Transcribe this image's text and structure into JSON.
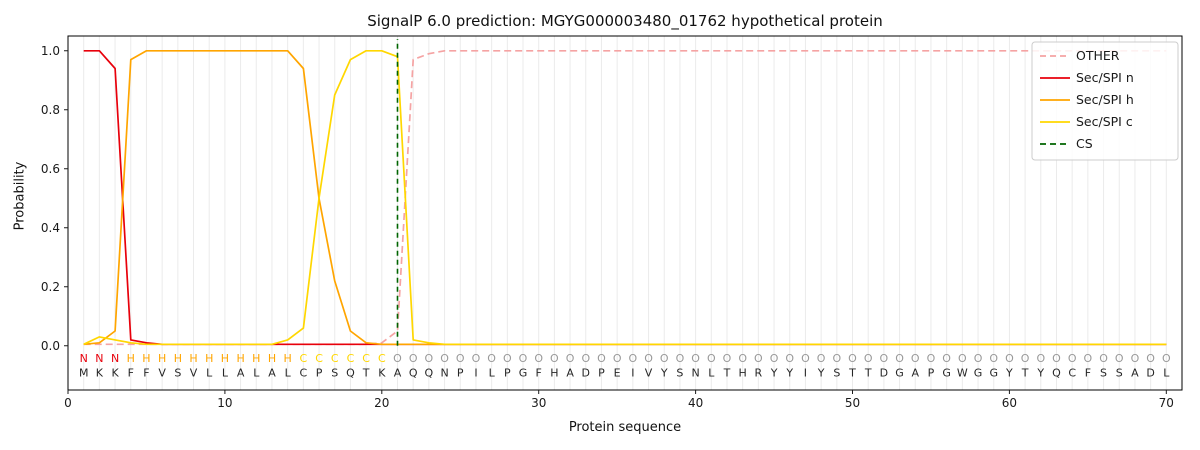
{
  "chart_data": {
    "type": "line",
    "title": "SignalP 6.0 prediction: MGYG000003480_01762 hypothetical protein",
    "xlabel": "Protein sequence",
    "ylabel": "Probability",
    "xlim": [
      0,
      71
    ],
    "ylim": [
      -0.15,
      1.05
    ],
    "xticks": [
      0,
      10,
      20,
      30,
      40,
      50,
      60,
      70
    ],
    "yticks": [
      "0.0",
      "0.2",
      "0.4",
      "0.6",
      "0.8",
      "1.0"
    ],
    "grid": "vertical-per-residue",
    "legend_position": "upper-right",
    "sequence": "MKKFFVSVLLALALCPSQTKAQQNPILPGFHADPEIVYSNLTHRYYIYSTTDGAPGWGGYTYQCFSSADL",
    "region_labels": "NNNHHHHHHHHHHHCCCCCCOOOOOOOOOOOOOOOOOOOOOOOOOOOOOOOOOOOOOOOOOOOOOOOOOO",
    "region_colors": {
      "N": "#e8000b",
      "H": "#ffa500",
      "C": "#ffd700",
      "O": "#999999"
    },
    "colors": {
      "grid": "#ebebeb",
      "axis": "#000000",
      "tick_text": "#1a1a1a",
      "aa_text": "#262626",
      "legend_border": "#cccccc",
      "legend_bg": "#ffffff"
    },
    "cs_position": 21,
    "series": [
      {
        "name": "OTHER",
        "color": "#f5a3a3",
        "dashed": true,
        "values": [
          0.005,
          0.005,
          0.005,
          0.005,
          0.005,
          0.005,
          0.005,
          0.005,
          0.005,
          0.005,
          0.005,
          0.005,
          0.005,
          0.005,
          0.005,
          0.005,
          0.005,
          0.005,
          0.005,
          0.01,
          0.05,
          0.97,
          0.99,
          1.0,
          1.0,
          1.0,
          1.0,
          1.0,
          1.0,
          1.0,
          1.0,
          1.0,
          1.0,
          1.0,
          1.0,
          1.0,
          1.0,
          1.0,
          1.0,
          1.0,
          1.0,
          1.0,
          1.0,
          1.0,
          1.0,
          1.0,
          1.0,
          1.0,
          1.0,
          1.0,
          1.0,
          1.0,
          1.0,
          1.0,
          1.0,
          1.0,
          1.0,
          1.0,
          1.0,
          1.0,
          1.0,
          1.0,
          1.0,
          1.0,
          1.0,
          1.0,
          1.0,
          1.0,
          1.0,
          1.0
        ]
      },
      {
        "name": "Sec/SPI n",
        "color": "#e8000b",
        "dashed": false,
        "values": [
          1.0,
          1.0,
          0.94,
          0.02,
          0.01,
          0.005,
          0.005,
          0.005,
          0.005,
          0.005,
          0.005,
          0.005,
          0.005,
          0.005,
          0.005,
          0.005,
          0.005,
          0.005,
          0.005,
          0.005,
          0.005,
          0.005,
          0.005,
          0.005,
          0.005,
          0.005,
          0.005,
          0.005,
          0.005,
          0.005,
          0.005,
          0.005,
          0.005,
          0.005,
          0.005,
          0.005,
          0.005,
          0.005,
          0.005,
          0.005,
          0.005,
          0.005,
          0.005,
          0.005,
          0.005,
          0.005,
          0.005,
          0.005,
          0.005,
          0.005,
          0.005,
          0.005,
          0.005,
          0.005,
          0.005,
          0.005,
          0.005,
          0.005,
          0.005,
          0.005,
          0.005,
          0.005,
          0.005,
          0.005,
          0.005,
          0.005,
          0.005,
          0.005,
          0.005,
          0.005
        ]
      },
      {
        "name": "Sec/SPI h",
        "color": "#ffa500",
        "dashed": false,
        "values": [
          0.005,
          0.01,
          0.05,
          0.97,
          1.0,
          1.0,
          1.0,
          1.0,
          1.0,
          1.0,
          1.0,
          1.0,
          1.0,
          1.0,
          0.94,
          0.5,
          0.22,
          0.05,
          0.01,
          0.005,
          0.005,
          0.005,
          0.005,
          0.005,
          0.005,
          0.005,
          0.005,
          0.005,
          0.005,
          0.005,
          0.005,
          0.005,
          0.005,
          0.005,
          0.005,
          0.005,
          0.005,
          0.005,
          0.005,
          0.005,
          0.005,
          0.005,
          0.005,
          0.005,
          0.005,
          0.005,
          0.005,
          0.005,
          0.005,
          0.005,
          0.005,
          0.005,
          0.005,
          0.005,
          0.005,
          0.005,
          0.005,
          0.005,
          0.005,
          0.005,
          0.005,
          0.005,
          0.005,
          0.005,
          0.005,
          0.005,
          0.005,
          0.005,
          0.005,
          0.005
        ]
      },
      {
        "name": "Sec/SPI c",
        "color": "#ffd700",
        "dashed": false,
        "values": [
          0.005,
          0.03,
          0.02,
          0.01,
          0.005,
          0.005,
          0.005,
          0.005,
          0.005,
          0.005,
          0.005,
          0.005,
          0.005,
          0.02,
          0.06,
          0.5,
          0.85,
          0.97,
          1.0,
          1.0,
          0.98,
          0.02,
          0.01,
          0.005,
          0.005,
          0.005,
          0.005,
          0.005,
          0.005,
          0.005,
          0.005,
          0.005,
          0.005,
          0.005,
          0.005,
          0.005,
          0.005,
          0.005,
          0.005,
          0.005,
          0.005,
          0.005,
          0.005,
          0.005,
          0.005,
          0.005,
          0.005,
          0.005,
          0.005,
          0.005,
          0.005,
          0.005,
          0.005,
          0.005,
          0.005,
          0.005,
          0.005,
          0.005,
          0.005,
          0.005,
          0.005,
          0.005,
          0.005,
          0.005,
          0.005,
          0.005,
          0.005,
          0.005,
          0.005,
          0.005
        ]
      },
      {
        "name": "CS",
        "color": "#006400",
        "dashed": true,
        "vline": 21
      }
    ]
  }
}
